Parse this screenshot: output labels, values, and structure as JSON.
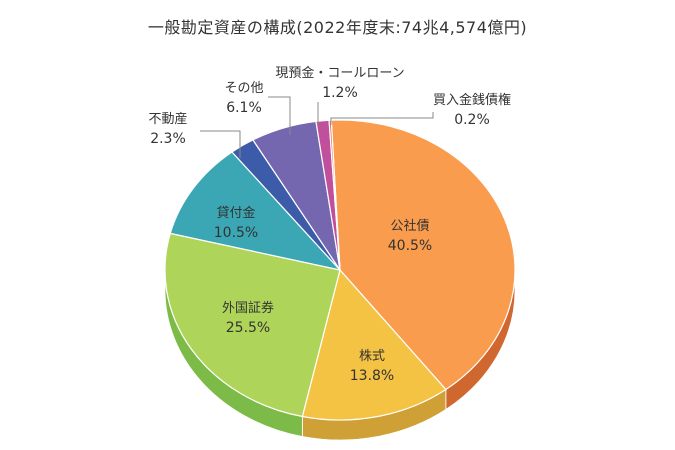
{
  "chart_data": {
    "type": "pie",
    "title": "一般勘定資産の構成(2022年度末:74兆4,574億円)",
    "slices": [
      {
        "label": "公社債",
        "value": 40.5,
        "value_label": "40.5%",
        "color": "#F99C4E",
        "side_color": "#D0672F"
      },
      {
        "label": "株式",
        "value": 13.8,
        "value_label": "13.8%",
        "color": "#F5C343",
        "side_color": "#CFA035"
      },
      {
        "label": "外国証券",
        "value": 25.5,
        "value_label": "25.5%",
        "color": "#AED55A",
        "side_color": "#7DBB48"
      },
      {
        "label": "貸付金",
        "value": 10.5,
        "value_label": "10.5%",
        "color": "#3BA7B5",
        "side_color": "#2C7F8A"
      },
      {
        "label": "不動産",
        "value": 2.3,
        "value_label": "2.3%",
        "color": "#3C5BA8",
        "side_color": "#2C4480"
      },
      {
        "label": "その他",
        "value": 6.1,
        "value_label": "6.1%",
        "color": "#7467B0",
        "side_color": "#554A88"
      },
      {
        "label": "現預金・コールローン",
        "value": 1.2,
        "value_label": "1.2%",
        "color": "#C0509C",
        "side_color": "#8E3A73"
      },
      {
        "label": "買入金銭債権",
        "value": 0.2,
        "value_label": "0.2%",
        "color": "#E8705A",
        "side_color": "#B04F3F"
      }
    ],
    "start": "top",
    "direction": "clockwise",
    "style": "3d"
  }
}
